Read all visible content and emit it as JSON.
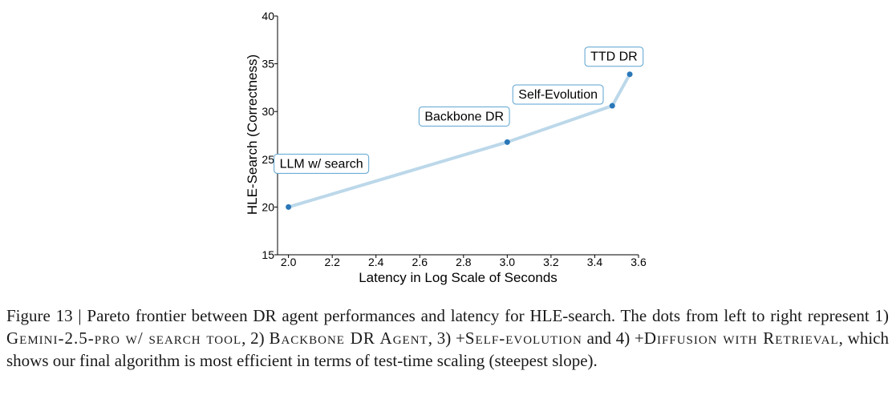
{
  "chart_data": {
    "type": "line",
    "xlabel": "Latency in Log Scale of Seconds",
    "ylabel": "HLE-Search (Correctness)",
    "xlim": [
      1.95,
      3.6
    ],
    "ylim": [
      15,
      40
    ],
    "xticks": [
      2.0,
      2.2,
      2.4,
      2.6,
      2.8,
      3.0,
      3.2,
      3.4,
      3.6
    ],
    "yticks": [
      15,
      20,
      25,
      30,
      35,
      40
    ],
    "xtick_labels": [
      "2.0",
      "2.2",
      "2.4",
      "2.6",
      "2.8",
      "3.0",
      "3.2",
      "3.4",
      "3.6"
    ],
    "ytick_labels": [
      "15",
      "20",
      "25",
      "30",
      "35",
      "40"
    ],
    "grid": false,
    "series": [
      {
        "x": [
          2.0,
          3.0,
          3.48,
          3.56
        ],
        "y": [
          20.0,
          26.8,
          30.6,
          33.9
        ],
        "line_color": "#bcd8ea",
        "point_color": "#2a77b8"
      }
    ],
    "annotations": [
      "LLM w/ search",
      "Backbone DR",
      "Self-Evolution",
      "TTD DR"
    ]
  },
  "caption": {
    "prefix": "Figure 13 | Pareto frontier between DR agent performances and latency for HLE-search. The dots from left to right represent 1) ",
    "item1": "Gemini-2.5-pro w/ search tool",
    "sep1": ", 2) ",
    "item2": "Backbone DR Agent",
    "sep2": ", 3) +",
    "item3": "Self-evolution",
    "sep3": " and 4) +",
    "item4": "Diffusion with Retrieval",
    "suffix": ", which shows our final algorithm is most efficient in terms of test-time scaling (steepest slope)."
  }
}
